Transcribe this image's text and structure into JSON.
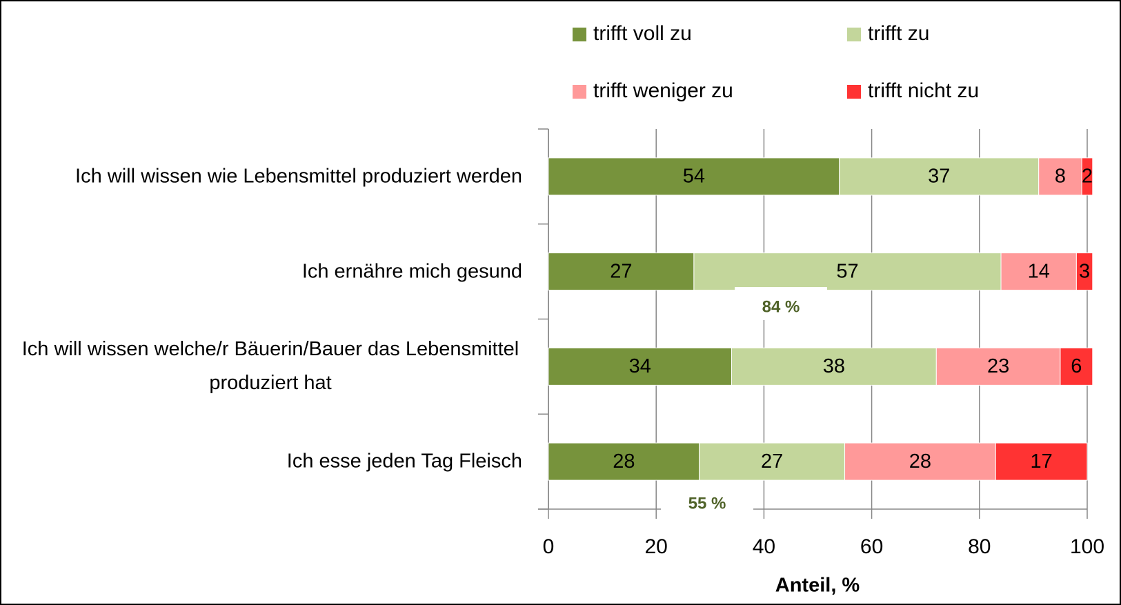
{
  "chart_data": {
    "type": "stacked-bar-horizontal",
    "categories": [
      "Ich will wissen wie Lebensmittel produziert werden",
      "Ich ernähre mich gesund",
      "Ich will wissen welche/r Bäuerin/Bauer das Lebensmittel produziert hat",
      "Ich esse jeden Tag Fleisch"
    ],
    "series": [
      {
        "name": "trifft voll zu",
        "color": "#77933c",
        "values": [
          54,
          27,
          34,
          28
        ]
      },
      {
        "name": "trifft zu",
        "color": "#c3d69b",
        "values": [
          37,
          57,
          38,
          27
        ]
      },
      {
        "name": "trifft weniger zu",
        "color": "#ff9999",
        "values": [
          8,
          14,
          23,
          28
        ]
      },
      {
        "name": "trifft nicht zu",
        "color": "#ff3333",
        "values": [
          2,
          3,
          6,
          17
        ]
      }
    ],
    "xlabel": "Anteil, %",
    "xlim": [
      0,
      100
    ],
    "xticks": [
      0,
      20,
      40,
      60,
      80,
      100
    ],
    "grid": true,
    "legend": "top",
    "annotations": [
      "84 %",
      "55 %"
    ]
  }
}
